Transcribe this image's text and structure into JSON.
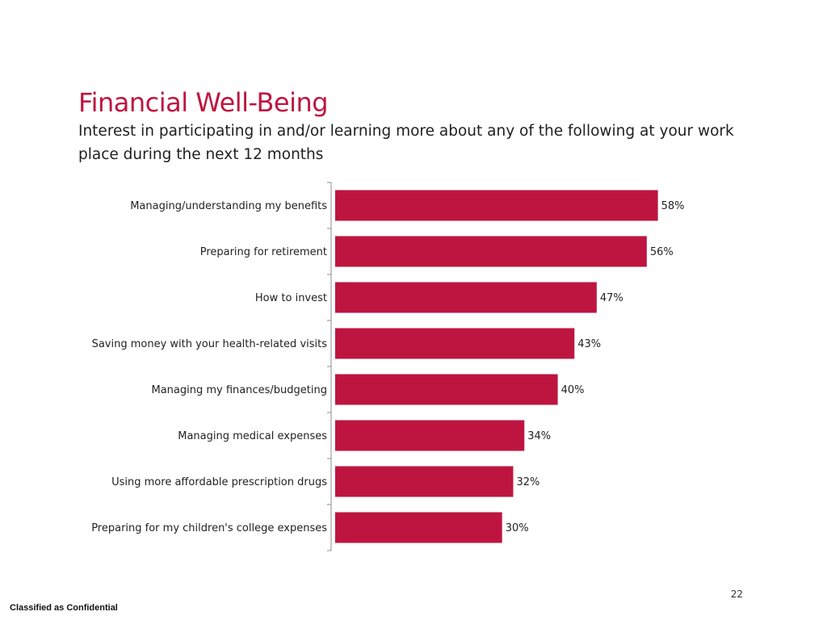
{
  "header": {
    "title": "Financial Well-Being",
    "subtitle": "Interest in participating in and/or learning more about any of the following at your work place during the next 12 months"
  },
  "chart_data": {
    "type": "bar",
    "orientation": "horizontal",
    "categories": [
      "Managing/understanding my benefits",
      "Preparing for retirement",
      "How to invest",
      "Saving money with your health-related visits",
      "Managing my finances/budgeting",
      "Managing medical expenses",
      "Using more affordable prescription drugs",
      "Preparing for my children's college expenses"
    ],
    "values": [
      58,
      56,
      47,
      43,
      40,
      34,
      32,
      30
    ],
    "value_labels": [
      "58%",
      "56%",
      "47%",
      "43%",
      "40%",
      "34%",
      "32%",
      "30%"
    ],
    "unit": "%",
    "xlim": [
      0,
      100
    ],
    "grid": false,
    "legend": "none",
    "bar_color": "#be1540"
  },
  "footer": {
    "page_number": "22",
    "classification": "Classified as Confidential"
  },
  "colors": {
    "title": "#be1540",
    "bar": "#be1540",
    "axis": "#8c8c8c"
  }
}
